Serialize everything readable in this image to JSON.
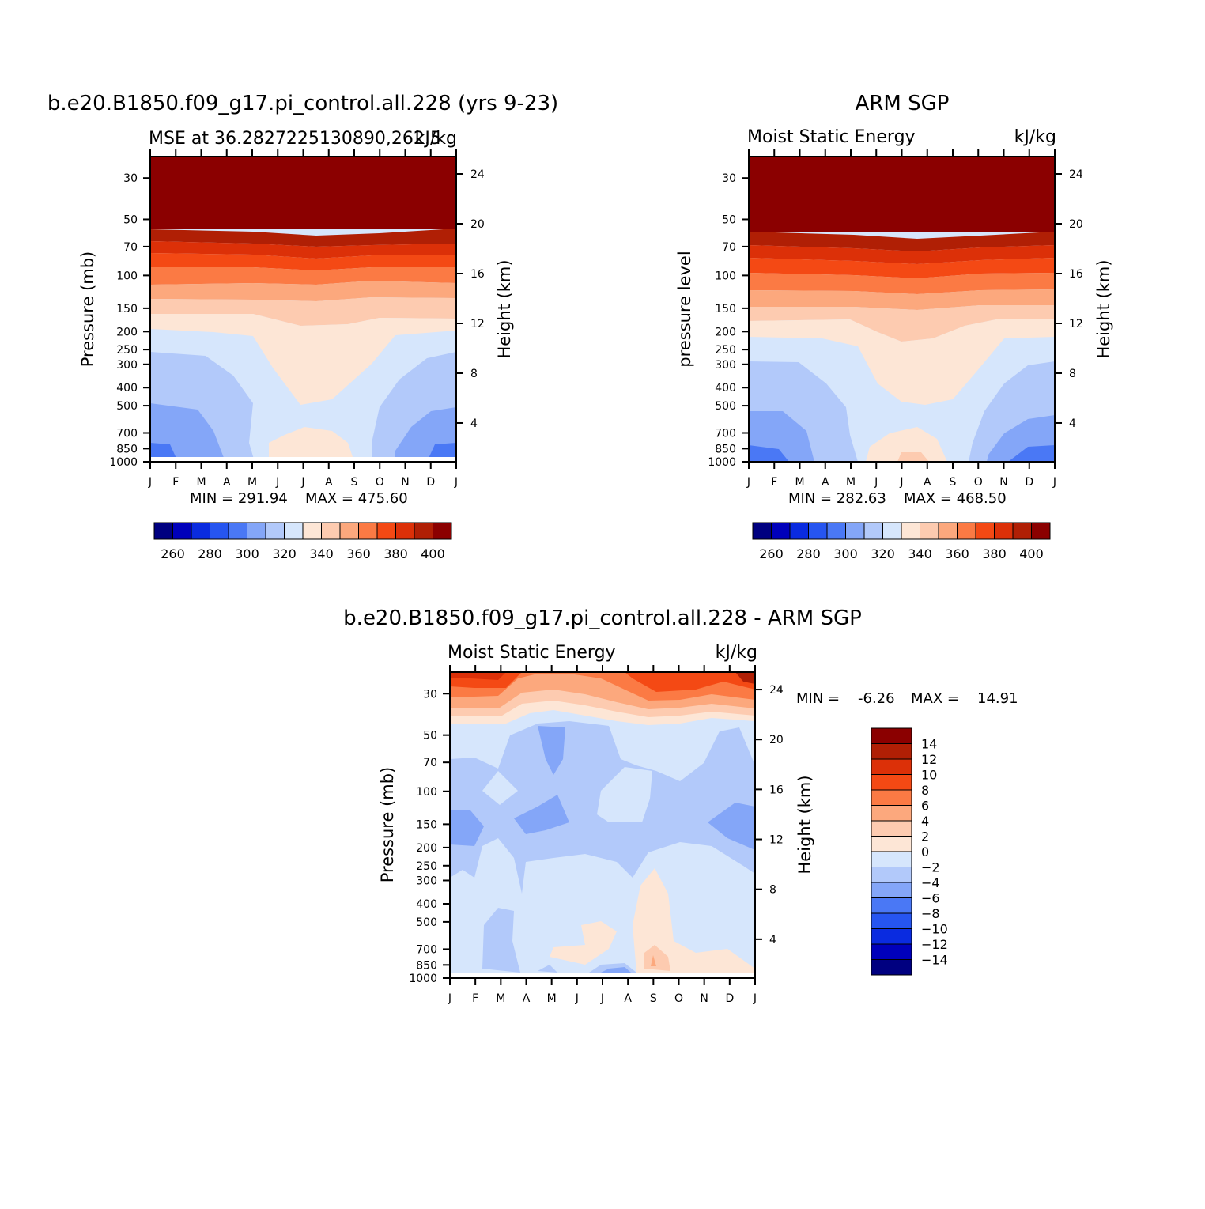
{
  "figure": {
    "months": [
      "J",
      "F",
      "M",
      "A",
      "M",
      "J",
      "J",
      "A",
      "S",
      "O",
      "N",
      "D",
      "J"
    ],
    "pressure_ticks": [
      "30",
      "50",
      "70",
      "100",
      "150",
      "200",
      "250",
      "300",
      "400",
      "500",
      "700",
      "850",
      "1000"
    ],
    "height_ticks": [
      "24",
      "20",
      "16",
      "12",
      "8",
      "4"
    ]
  },
  "chart_data": [
    {
      "type": "heatmap",
      "title": "b.e20.B1850.f09_g17.pi_control.all.228 (yrs 9-23)",
      "left_string": "MSE at 36.2827225130890,262.5",
      "right_string": "kJ/kg",
      "ylabel": "Pressure (mb)",
      "ylabel_right": "Height (km)",
      "x": [
        "J",
        "F",
        "M",
        "A",
        "M",
        "J",
        "J",
        "A",
        "S",
        "O",
        "N",
        "D",
        "J"
      ],
      "y_pressure_mb": [
        30,
        50,
        70,
        100,
        150,
        200,
        250,
        300,
        400,
        500,
        700,
        850,
        1000
      ],
      "y_height_km": [
        24,
        20,
        16,
        12,
        8,
        4
      ],
      "min_label": "MIN = 291.94",
      "max_label": "MAX = 475.60",
      "colorbar": {
        "levels": [
          260,
          270,
          280,
          290,
          300,
          310,
          320,
          330,
          340,
          350,
          360,
          370,
          380,
          390,
          400
        ],
        "labels": [
          "260",
          "280",
          "300",
          "320",
          "340",
          "360",
          "380",
          "400"
        ],
        "colors": [
          "#000080",
          "#0000bb",
          "#0a2be0",
          "#2655f0",
          "#4a78f5",
          "#84a6f8",
          "#b2c9fa",
          "#d6e6fc",
          "#fde6d6",
          "#fdcbb0",
          "#fca87d",
          "#fb7a44",
          "#f44914",
          "#dc3008",
          "#b01f05",
          "#8b0000"
        ]
      },
      "regions": [
        {
          "level": "< 300",
          "color": "#2655f0",
          "months": "Jan-Feb, Dec-Jan",
          "pressure_mb": "850-1000"
        },
        {
          "level": "300-310",
          "color": "#4a78f5",
          "months": "Jan-Apr, Nov-Jan",
          "pressure_mb": "500-1000"
        },
        {
          "level": "310-320",
          "color": "#84a6f8",
          "months": "Jan-May, Oct-Jan",
          "pressure_mb": "270-1000"
        },
        {
          "level": "320-330",
          "color": "#b2c9fa",
          "months": "Jan-Jan",
          "pressure_mb": "200-1000"
        },
        {
          "level": "330-340",
          "color": "#d6e6fc",
          "months": "Jan-Jan",
          "pressure_mb": "170-1000"
        },
        {
          "level": "340-350",
          "color": "#fde6d6",
          "months": "May-Sep",
          "pressure_mb": "200-500; 700-1000"
        }
      ]
    },
    {
      "type": "heatmap",
      "title": "ARM SGP",
      "left_string": "Moist Static Energy",
      "right_string": "kJ/kg",
      "ylabel": "pressure level",
      "ylabel_right": "Height (km)",
      "x": [
        "J",
        "F",
        "M",
        "A",
        "M",
        "J",
        "J",
        "A",
        "S",
        "O",
        "N",
        "D",
        "J"
      ],
      "y_pressure_mb": [
        30,
        50,
        70,
        100,
        150,
        200,
        250,
        300,
        400,
        500,
        700,
        850,
        1000
      ],
      "y_height_km": [
        24,
        20,
        16,
        12,
        8,
        4
      ],
      "min_label": "MIN = 282.63",
      "max_label": "MAX = 468.50",
      "colorbar": {
        "levels": [
          260,
          270,
          280,
          290,
          300,
          310,
          320,
          330,
          340,
          350,
          360,
          370,
          380,
          390,
          400
        ],
        "labels": [
          "260",
          "280",
          "300",
          "320",
          "340",
          "360",
          "380",
          "400"
        ],
        "colors": [
          "#000080",
          "#0000bb",
          "#0a2be0",
          "#2655f0",
          "#4a78f5",
          "#84a6f8",
          "#b2c9fa",
          "#d6e6fc",
          "#fde6d6",
          "#fdcbb0",
          "#fca87d",
          "#fb7a44",
          "#f44914",
          "#dc3008",
          "#b01f05",
          "#8b0000"
        ]
      },
      "regions": [
        {
          "level": "< 300",
          "color": "#2655f0",
          "months": "Jan-Mar, Nov-Jan",
          "pressure_mb": "900-1000"
        },
        {
          "level": "300-310",
          "color": "#4a78f5",
          "months": "Jan-May, Oct-Jan",
          "pressure_mb": "500-1000"
        },
        {
          "level": "310-320",
          "color": "#84a6f8",
          "months": "Jan-Jun, Sep-Jan",
          "pressure_mb": "300-1000"
        },
        {
          "level": "330-350",
          "color": "#fde6d6",
          "months": "Jun-Aug",
          "pressure_mb": "200-500; 750-1000"
        }
      ]
    },
    {
      "type": "heatmap",
      "title": "b.e20.B1850.f09_g17.pi_control.all.228 - ARM SGP",
      "left_string": "Moist Static Energy",
      "right_string": "kJ/kg",
      "ylabel": "Pressure (mb)",
      "ylabel_right": "Height (km)",
      "x": [
        "J",
        "F",
        "M",
        "A",
        "M",
        "J",
        "J",
        "A",
        "S",
        "O",
        "N",
        "D",
        "J"
      ],
      "y_pressure_mb": [
        30,
        50,
        70,
        100,
        150,
        200,
        250,
        300,
        400,
        500,
        700,
        850,
        1000
      ],
      "y_height_km": [
        24,
        20,
        16,
        12,
        8,
        4
      ],
      "min_label": "MIN =",
      "min_value": "-6.26",
      "max_label": "MAX =",
      "max_value": "14.91",
      "colorbar": {
        "levels": [
          -14,
          -12,
          -10,
          -8,
          -6,
          -4,
          -2,
          0,
          2,
          4,
          6,
          8,
          10,
          12,
          14
        ],
        "labels": [
          "14",
          "12",
          "10",
          "8",
          "6",
          "4",
          "2",
          "0",
          "-2",
          "-4",
          "-6",
          "-8",
          "-10",
          "-12",
          "-14"
        ],
        "colors": [
          "#8b0000",
          "#b01f05",
          "#dc3008",
          "#f44914",
          "#fb7a44",
          "#fca87d",
          "#fdcbb0",
          "#fde6d6",
          "#d6e6fc",
          "#b2c9fa",
          "#84a6f8",
          "#4a78f5",
          "#2655f0",
          "#0a2be0",
          "#0000bb",
          "#000080"
        ]
      },
      "regions": [
        {
          "level": "2-14",
          "color": "#f44914",
          "months": "Jan-Jan",
          "pressure_mb": "25-45"
        },
        {
          "level": "-2-0",
          "color": "#d6e6fc",
          "months": "Jan-Jan",
          "pressure_mb": "50-1000"
        },
        {
          "level": "-4 to -2",
          "color": "#b2c9fa",
          "months": "Jan-Jan",
          "pressure_mb": "70-350"
        },
        {
          "level": "-6 to -4",
          "color": "#84a6f8",
          "months": "Jan, Apr, Dec",
          "pressure_mb": "100-200"
        },
        {
          "level": "0-2",
          "color": "#fde6d6",
          "months": "Jun-Oct",
          "pressure_mb": "300-1000"
        }
      ]
    }
  ]
}
